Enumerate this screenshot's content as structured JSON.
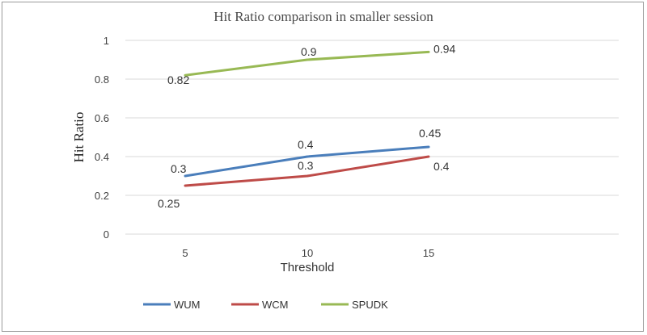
{
  "chart_data": {
    "type": "line",
    "title": "Hit Ratio comparison in smaller session",
    "xlabel": "Threshold",
    "ylabel": "Hit Ratio",
    "categories": [
      "5",
      "10",
      "15"
    ],
    "ylim": [
      0,
      1
    ],
    "yticks": [
      "0",
      "0.2",
      "0.4",
      "0.6",
      "0.8",
      "1"
    ],
    "grid": true,
    "legend_position": "bottom",
    "series": [
      {
        "name": "WUM",
        "color": "#4a7ebb",
        "values": [
          0.3,
          0.4,
          0.45
        ],
        "labels": [
          "0.3",
          "0.4",
          "0.45"
        ]
      },
      {
        "name": "WCM",
        "color": "#be4b48",
        "values": [
          0.25,
          0.3,
          0.4
        ],
        "labels": [
          "0.25",
          "0.3",
          "0.4"
        ]
      },
      {
        "name": "SPUDK",
        "color": "#98b954",
        "values": [
          0.82,
          0.9,
          0.94
        ],
        "labels": [
          "0.82",
          "0.9",
          "0.94"
        ]
      }
    ]
  }
}
